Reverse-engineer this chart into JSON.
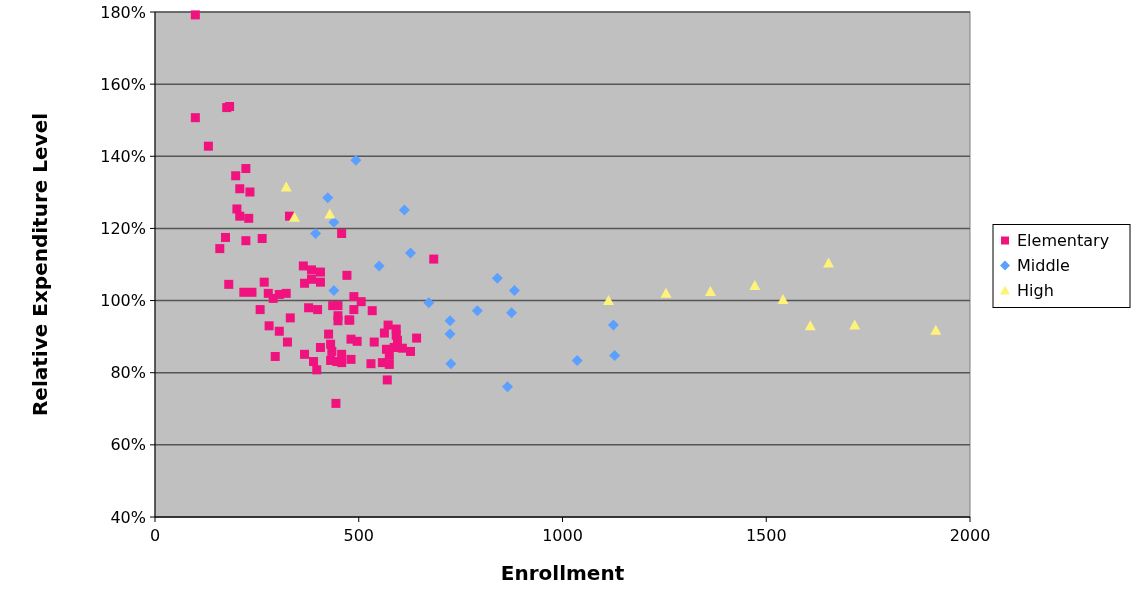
{
  "chart_data": {
    "type": "scatter",
    "xlabel": "Enrollment",
    "ylabel": "Relative Expenditure Level",
    "xlim": [
      0,
      2000
    ],
    "xticks": [
      0,
      500,
      1000,
      1500,
      2000
    ],
    "ylim": [
      40,
      180
    ],
    "yticks": [
      {
        "value": 40,
        "label": "40%"
      },
      {
        "value": 60,
        "label": "60%"
      },
      {
        "value": 80,
        "label": "80%"
      },
      {
        "value": 100,
        "label": "100%"
      },
      {
        "value": 120,
        "label": "120%"
      },
      {
        "value": 140,
        "label": "140%"
      },
      {
        "value": 160,
        "label": "160%"
      },
      {
        "value": 180,
        "label": "180%"
      }
    ],
    "grid": "y",
    "legend": "right",
    "series": [
      {
        "name": "Elementary",
        "color": "#f0127e",
        "marker": "square",
        "x": [
          99,
          99,
          131,
          176,
          183,
          198,
          223,
          208,
          233,
          201,
          208,
          230,
          330,
          173,
          223,
          263,
          159,
          458,
          364,
          384,
          406,
          367,
          384,
          406,
          471,
          181,
          218,
          238,
          268,
          278,
          290,
          305,
          322,
          258,
          332,
          280,
          305,
          325,
          295,
          377,
          399,
          436,
          449,
          449,
          449,
          476,
          488,
          506,
          488,
          533,
          478,
          426,
          481,
          496,
          431,
          406,
          434,
          458,
          431,
          458,
          481,
          397,
          367,
          389,
          446,
          444,
          684,
          538,
          563,
          572,
          592,
          592,
          595,
          568,
          587,
          607,
          627,
          642,
          575,
          575,
          558,
          530,
          570
        ],
        "values": [
          179.2,
          150.7,
          142.8,
          153.5,
          153.8,
          134.6,
          136.6,
          131.0,
          130.1,
          125.4,
          123.4,
          122.8,
          123.4,
          117.5,
          116.6,
          117.2,
          114.4,
          118.6,
          109.6,
          108.5,
          107.9,
          104.8,
          105.9,
          105.1,
          107.0,
          104.5,
          102.3,
          102.3,
          105.1,
          102.0,
          100.6,
          101.7,
          102.0,
          97.5,
          95.2,
          93.0,
          91.5,
          88.5,
          84.5,
          98.0,
          97.5,
          98.6,
          98.6,
          95.8,
          94.4,
          94.6,
          101.1,
          99.7,
          97.5,
          97.2,
          94.6,
          90.7,
          89.3,
          88.7,
          87.9,
          87.0,
          85.9,
          85.1,
          83.4,
          82.8,
          83.7,
          80.8,
          85.1,
          83.1,
          83.1,
          71.5,
          111.5,
          88.5,
          91.0,
          93.2,
          92.1,
          90.4,
          89.0,
          86.5,
          87.0,
          86.8,
          85.9,
          89.6,
          84.8,
          82.3,
          82.8,
          82.5,
          78.0
        ]
      },
      {
        "name": "Middle",
        "color": "#5ba0ff",
        "marker": "diamond",
        "x": [
          493,
          424,
          612,
          439,
          394,
          627,
          550,
          439,
          840,
          882,
          875,
          1125,
          1036,
          1128,
          865,
          672,
          791,
          724,
          724,
          726
        ],
        "values": [
          138.9,
          128.5,
          125.1,
          121.7,
          118.6,
          113.2,
          109.6,
          102.8,
          106.2,
          102.8,
          96.6,
          93.2,
          83.4,
          84.8,
          76.1,
          99.4,
          97.2,
          94.4,
          90.7,
          82.5
        ]
      },
      {
        "name": "High",
        "color": "#fff27a",
        "marker": "triangle",
        "x": [
          322,
          342,
          429,
          1113,
          1254,
          1363,
          1472,
          1541,
          1653,
          1608,
          1717,
          1916
        ],
        "values": [
          131.5,
          123.1,
          124.0,
          100.0,
          102.0,
          102.5,
          104.2,
          100.3,
          110.4,
          93.0,
          93.2,
          91.8
        ]
      }
    ]
  }
}
